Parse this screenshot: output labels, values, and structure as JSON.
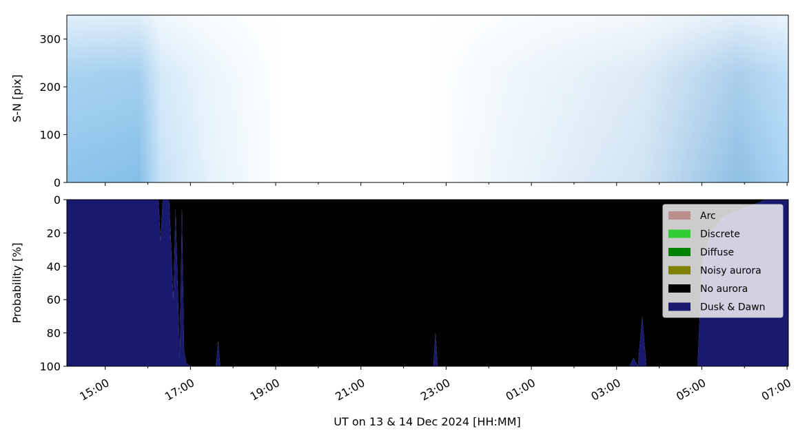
{
  "chart_data": [
    {
      "type": "image",
      "ylabel": "S-N [pix]",
      "ylim": [
        350,
        0
      ],
      "yticks": [
        0,
        100,
        200,
        300
      ]
    },
    {
      "type": "stacked_area",
      "ylabel": "Probability [%]",
      "xlabel": "UT on 13 & 14 Dec 2024 [HH:MM]",
      "xlim": [
        14.1,
        31.03
      ],
      "xticks": [
        {
          "value": 15,
          "label": "15:00"
        },
        {
          "value": 17,
          "label": "17:00"
        },
        {
          "value": 19,
          "label": "19:00"
        },
        {
          "value": 21,
          "label": "21:00"
        },
        {
          "value": 23,
          "label": "23:00"
        },
        {
          "value": 25,
          "label": "01:00"
        },
        {
          "value": 27,
          "label": "03:00"
        },
        {
          "value": 29,
          "label": "05:00"
        },
        {
          "value": 31,
          "label": "07:00"
        }
      ],
      "xminorticks": [
        16,
        18,
        20,
        22,
        24,
        26,
        28,
        30
      ],
      "ylim": [
        0,
        100
      ],
      "yticks": [
        0,
        20,
        40,
        60,
        80,
        100
      ],
      "legend": "upper right",
      "x": [
        14.1,
        16.25,
        16.3,
        16.35,
        16.5,
        16.6,
        16.65,
        16.75,
        16.8,
        16.85,
        16.9,
        17.0,
        17.6,
        17.65,
        17.7,
        22.7,
        22.75,
        22.8,
        27.3,
        27.4,
        27.5,
        27.6,
        27.7,
        28.9,
        29.0,
        29.2,
        29.5,
        30.0,
        30.3,
        30.5,
        31.03
      ],
      "series": [
        {
          "name": "Arc",
          "color": "#bc8f8f",
          "values": [
            0,
            0,
            0,
            0,
            0,
            0,
            0,
            0,
            0,
            0,
            0,
            0,
            0,
            0,
            0,
            0,
            0,
            0,
            0,
            0,
            0,
            0,
            0,
            0,
            0,
            0,
            0,
            0,
            0,
            0,
            0
          ]
        },
        {
          "name": "Discrete",
          "color": "#32cd32",
          "values": [
            0,
            0,
            0,
            0,
            0,
            0,
            0,
            0,
            0,
            0,
            0,
            0,
            0,
            0,
            0,
            0,
            0,
            0,
            0,
            0,
            0,
            0,
            0,
            0,
            0,
            0,
            0,
            0,
            0,
            0,
            0
          ]
        },
        {
          "name": "Diffuse",
          "color": "#008000",
          "values": [
            0,
            0,
            0,
            0,
            0,
            0,
            0,
            0,
            0,
            0,
            0,
            0,
            0,
            0,
            0,
            0,
            0,
            0,
            0,
            0,
            0,
            0,
            0,
            0,
            0,
            0,
            0,
            0,
            0,
            0,
            0
          ]
        },
        {
          "name": "Noisy aurora",
          "color": "#808000",
          "values": [
            0,
            0,
            0,
            0,
            0,
            0,
            0,
            0,
            0,
            0,
            0,
            0,
            0,
            0,
            0,
            0,
            0,
            0,
            0,
            0,
            0,
            0,
            0,
            0,
            0,
            0,
            0,
            0,
            0,
            0,
            0
          ]
        },
        {
          "name": "No aurora",
          "color": "#000000",
          "values": [
            0,
            0,
            25,
            0,
            0,
            60,
            5,
            95,
            5,
            90,
            98,
            100,
            100,
            85,
            100,
            100,
            80,
            100,
            100,
            95,
            100,
            70,
            100,
            100,
            40,
            20,
            10,
            5,
            2,
            0,
            0
          ]
        },
        {
          "name": "Dusk & Dawn",
          "color": "#191970",
          "values": [
            100,
            100,
            75,
            100,
            100,
            40,
            95,
            5,
            95,
            10,
            2,
            0,
            0,
            15,
            0,
            0,
            20,
            0,
            0,
            5,
            0,
            30,
            0,
            0,
            60,
            80,
            90,
            95,
            98,
            100,
            100
          ]
        }
      ]
    }
  ]
}
